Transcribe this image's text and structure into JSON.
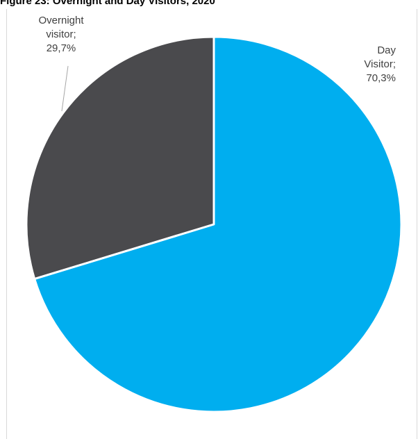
{
  "chart_data": {
    "type": "pie",
    "title": "Figure 23: Overnight and Day Visitors, 2020",
    "categories": [
      "Overnight visitor",
      "Day Visitor"
    ],
    "values": [
      29.7,
      70.3
    ],
    "unit": "%",
    "colors": [
      "#4a4a4d",
      "#00aeef"
    ],
    "data_labels": [
      {
        "line1": "Overnight",
        "line2": "visitor;",
        "value": "29,7%"
      },
      {
        "line1": "Day",
        "line2": "Visitor;",
        "value": "70,3%"
      }
    ],
    "legend": "none"
  }
}
